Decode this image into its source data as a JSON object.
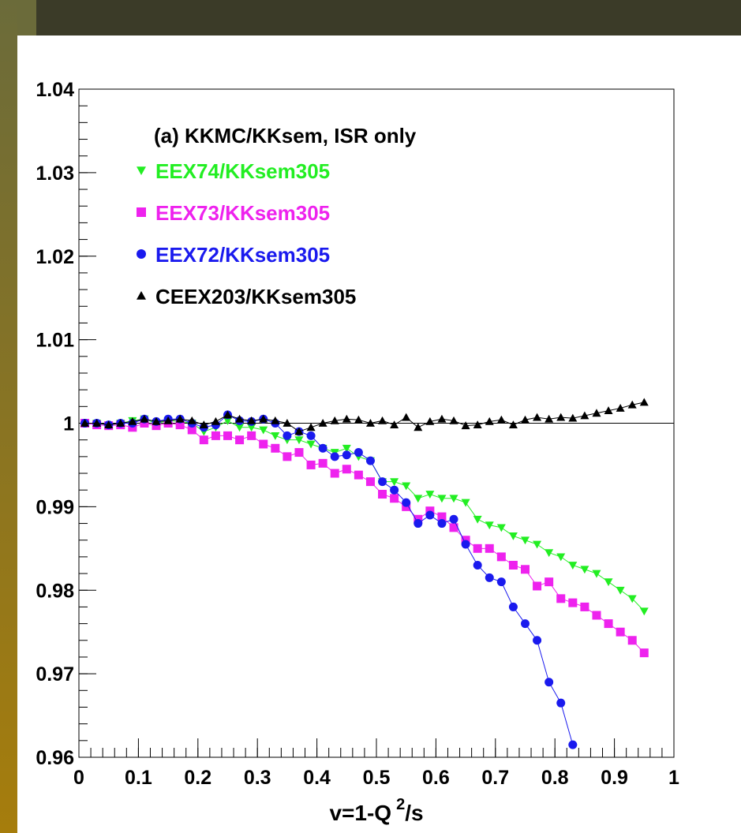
{
  "chart_data": {
    "type": "scatter",
    "title": "(a) KKMC/KKsem, ISR only",
    "x_label": {
      "base": "v=1-Q",
      "sup": "2",
      "rest": "/s"
    },
    "xlim": [
      0,
      1
    ],
    "xticks": [
      0,
      0.1,
      0.2,
      0.3,
      0.4,
      0.5,
      0.6,
      0.7,
      0.8,
      0.9,
      1
    ],
    "ylim": [
      0.96,
      1.04
    ],
    "yticks": [
      0.96,
      0.97,
      0.98,
      0.99,
      1,
      1.01,
      1.02,
      1.03,
      1.04
    ],
    "hline": 1,
    "x": [
      0.01,
      0.03,
      0.05,
      0.07,
      0.09,
      0.11,
      0.13,
      0.15,
      0.17,
      0.19,
      0.21,
      0.23,
      0.25,
      0.27,
      0.29,
      0.31,
      0.33,
      0.35,
      0.37,
      0.39,
      0.41,
      0.43,
      0.45,
      0.47,
      0.49,
      0.51,
      0.53,
      0.55,
      0.57,
      0.59,
      0.61,
      0.63,
      0.65,
      0.67,
      0.69,
      0.71,
      0.73,
      0.75,
      0.77,
      0.79,
      0.81,
      0.83,
      0.85,
      0.87,
      0.89,
      0.91,
      0.93,
      0.95
    ],
    "series": [
      {
        "name": "EEX74/KKsem305",
        "color": "#22ee22",
        "marker": "triangle-down",
        "values": [
          1.0,
          1.0,
          0.9998,
          1.0,
          1.0003,
          1.0005,
          1.0,
          1.0003,
          1.0002,
          1.0,
          0.999,
          0.9995,
          1.0003,
          0.9995,
          0.9995,
          0.9992,
          0.9985,
          0.998,
          0.998,
          0.9975,
          0.997,
          0.9965,
          0.997,
          0.996,
          0.9955,
          0.993,
          0.993,
          0.9925,
          0.991,
          0.9915,
          0.991,
          0.991,
          0.9905,
          0.9885,
          0.9878,
          0.9875,
          0.9865,
          0.986,
          0.9855,
          0.9845,
          0.984,
          0.983,
          0.9825,
          0.982,
          0.981,
          0.98,
          0.979,
          0.9775
        ]
      },
      {
        "name": "EEX73/KKsem305",
        "color": "#ee22ee",
        "marker": "square",
        "values": [
          1.0,
          0.9998,
          0.9997,
          0.9998,
          0.9995,
          1.0,
          0.9997,
          1.0,
          0.9998,
          0.9992,
          0.998,
          0.9985,
          0.9985,
          0.998,
          0.9985,
          0.9975,
          0.997,
          0.996,
          0.9965,
          0.995,
          0.9952,
          0.994,
          0.9945,
          0.9938,
          0.993,
          0.9915,
          0.991,
          0.99,
          0.9885,
          0.9895,
          0.9888,
          0.9875,
          0.986,
          0.985,
          0.985,
          0.984,
          0.983,
          0.9825,
          0.9805,
          0.981,
          0.979,
          0.9785,
          0.978,
          0.977,
          0.976,
          0.975,
          0.974,
          0.9725
        ]
      },
      {
        "name": "EEX72/KKsem305",
        "color": "#1a1aee",
        "marker": "circle",
        "values": [
          1.0,
          1.0,
          0.9998,
          1.0,
          1.0,
          1.0005,
          1.0002,
          1.0005,
          1.0005,
          1.0,
          0.9995,
          0.9998,
          1.001,
          1.0003,
          1.0002,
          1.0005,
          1.0,
          0.9985,
          0.999,
          0.9985,
          0.997,
          0.996,
          0.9962,
          0.9965,
          0.9955,
          0.993,
          0.992,
          0.9905,
          0.988,
          0.989,
          0.988,
          0.9885,
          0.9855,
          0.983,
          0.9815,
          0.981,
          0.978,
          0.976,
          0.974,
          0.969,
          0.9665,
          0.9615,
          null,
          null,
          null,
          null,
          null,
          null
        ]
      },
      {
        "name": "CEEX203/KKsem305",
        "color": "#000000",
        "marker": "triangle-up",
        "values": [
          1.0,
          1.0,
          0.9998,
          1.0,
          1.0002,
          1.0005,
          1.0002,
          1.0003,
          1.0005,
          1.0003,
          0.9998,
          1.0002,
          1.001,
          1.0005,
          1.0003,
          1.0005,
          1.0003,
          1.0,
          0.999,
          0.9995,
          1.0,
          1.0003,
          1.0005,
          1.0004,
          1.0,
          1.0003,
          0.9998,
          1.0007,
          0.9995,
          1.0002,
          1.0005,
          1.0003,
          0.9997,
          0.9998,
          1.0002,
          1.0004,
          0.9998,
          1.0004,
          1.0007,
          1.0005,
          1.0007,
          1.0006,
          1.0009,
          1.0012,
          1.0015,
          1.0018,
          1.0022,
          1.0025
        ]
      }
    ]
  }
}
